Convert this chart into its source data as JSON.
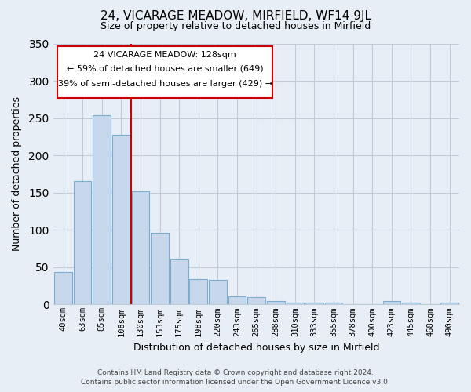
{
  "title": "24, VICARAGE MEADOW, MIRFIELD, WF14 9JL",
  "subtitle": "Size of property relative to detached houses in Mirfield",
  "xlabel": "Distribution of detached houses by size in Mirfield",
  "ylabel": "Number of detached properties",
  "bar_labels": [
    "40sqm",
    "63sqm",
    "85sqm",
    "108sqm",
    "130sqm",
    "153sqm",
    "175sqm",
    "198sqm",
    "220sqm",
    "243sqm",
    "265sqm",
    "288sqm",
    "310sqm",
    "333sqm",
    "355sqm",
    "378sqm",
    "400sqm",
    "423sqm",
    "445sqm",
    "468sqm",
    "490sqm"
  ],
  "bar_values": [
    44,
    165,
    254,
    228,
    152,
    96,
    61,
    34,
    33,
    11,
    10,
    5,
    3,
    2,
    2,
    0,
    0,
    5,
    2,
    0,
    2
  ],
  "bar_color": "#c8d8ec",
  "bar_edge_color": "#7aadcf",
  "vline_pos": 3.5,
  "vline_color": "#cc0000",
  "ylim": [
    0,
    350
  ],
  "yticks": [
    0,
    50,
    100,
    150,
    200,
    250,
    300,
    350
  ],
  "annotation_title": "24 VICARAGE MEADOW: 128sqm",
  "annotation_line1": "← 59% of detached houses are smaller (649)",
  "annotation_line2": "39% of semi-detached houses are larger (429) →",
  "footer_line1": "Contains HM Land Registry data © Crown copyright and database right 2024.",
  "footer_line2": "Contains public sector information licensed under the Open Government Licence v3.0.",
  "bg_color": "#e8eef5",
  "plot_bg_color": "#e8eef5",
  "grid_color": "#c0ccd8",
  "title_fontsize": 11,
  "subtitle_fontsize": 9,
  "ylabel_fontsize": 9,
  "xlabel_fontsize": 9
}
